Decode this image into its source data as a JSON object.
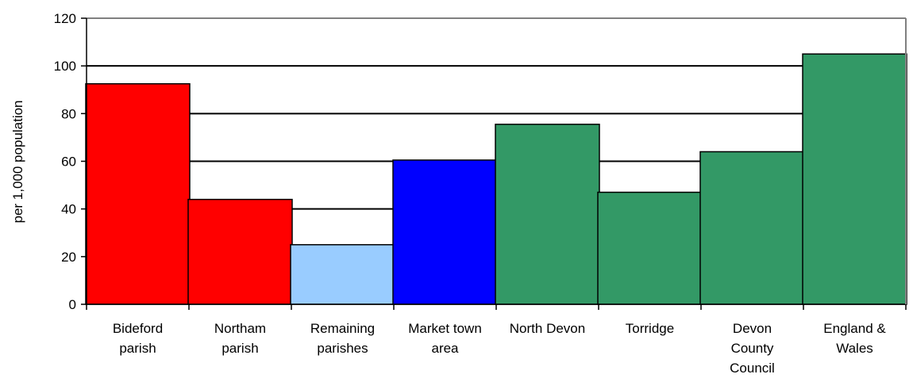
{
  "chart_data": {
    "type": "bar",
    "title": "",
    "xlabel": "",
    "ylabel": "per 1,000 population",
    "ylim": [
      0,
      120
    ],
    "yticks": [
      0,
      20,
      40,
      60,
      80,
      100,
      120
    ],
    "grid": true,
    "legend": "none",
    "categories": [
      [
        "Bideford",
        "parish"
      ],
      [
        "Northam",
        "parish"
      ],
      [
        "Remaining",
        "parishes"
      ],
      [
        "Market town",
        "area"
      ],
      [
        "North Devon"
      ],
      [
        "Torridge"
      ],
      [
        "Devon",
        "County",
        "Council"
      ],
      [
        "England &",
        "Wales"
      ]
    ],
    "values": [
      92.5,
      44,
      25,
      60.5,
      75.5,
      47,
      64,
      105
    ],
    "colors": [
      "#ff0000",
      "#ff0000",
      "#99ccff",
      "#0000ff",
      "#339966",
      "#339966",
      "#339966",
      "#339966"
    ]
  }
}
